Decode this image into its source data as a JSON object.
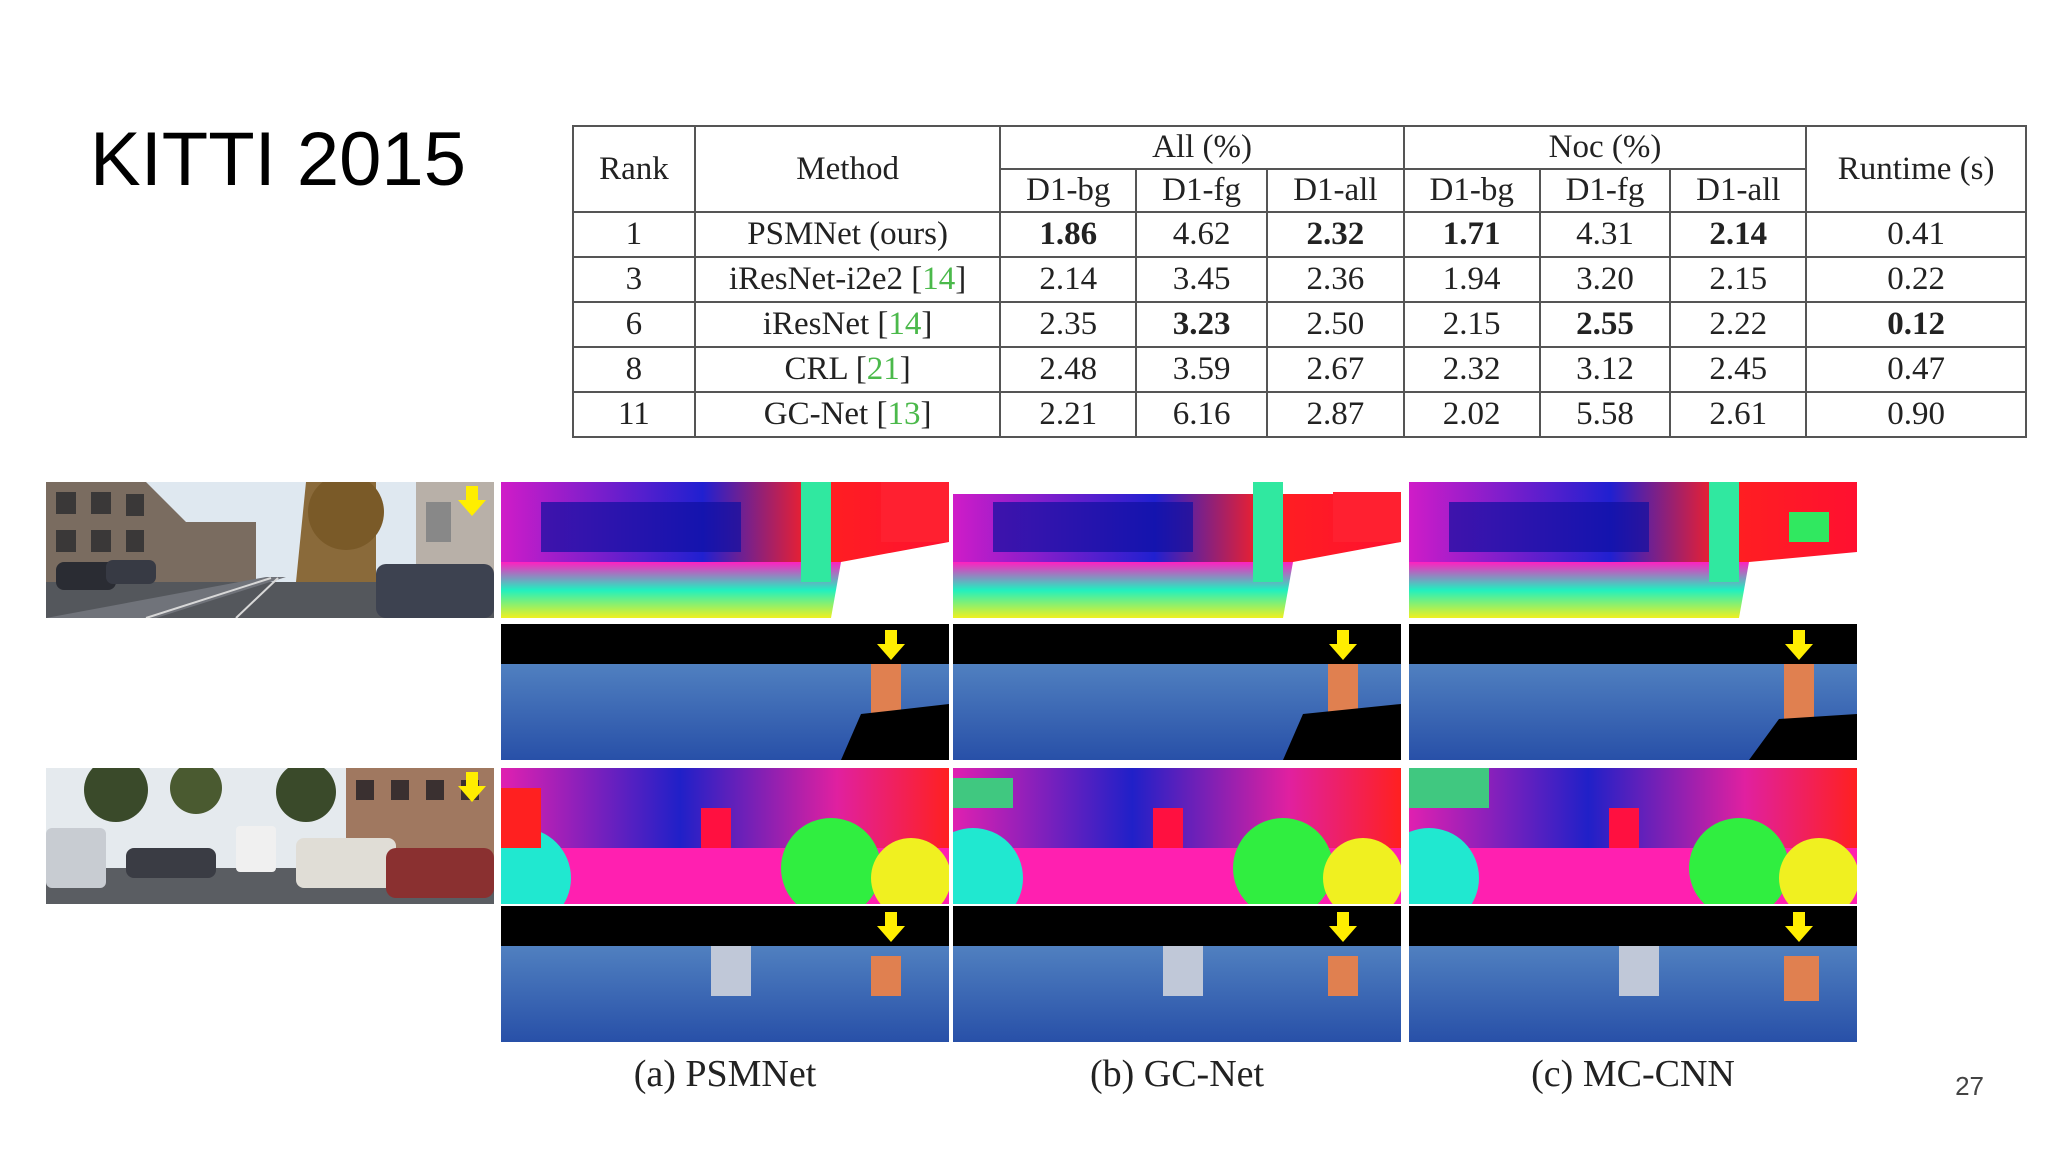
{
  "slide": {
    "title": "KITTI 2015",
    "page_number": "27"
  },
  "table": {
    "headers": {
      "rank": "Rank",
      "method": "Method",
      "all": "All (%)",
      "noc": "Noc (%)",
      "runtime": "Runtime (s)",
      "sub": [
        "D1-bg",
        "D1-fg",
        "D1-all",
        "D1-bg",
        "D1-fg",
        "D1-all"
      ]
    },
    "rows": [
      {
        "rank": "1",
        "method": "PSMNet (ours)",
        "ref": "",
        "all_bg": "1.86",
        "all_fg": "4.62",
        "all_all": "2.32",
        "noc_bg": "1.71",
        "noc_fg": "4.31",
        "noc_all": "2.14",
        "runtime": "0.41"
      },
      {
        "rank": "3",
        "method": "iResNet-i2e2 [",
        "ref": "14",
        "all_bg": "2.14",
        "all_fg": "3.45",
        "all_all": "2.36",
        "noc_bg": "1.94",
        "noc_fg": "3.20",
        "noc_all": "2.15",
        "runtime": "0.22"
      },
      {
        "rank": "6",
        "method": "iResNet [",
        "ref": "14",
        "all_bg": "2.35",
        "all_fg": "3.23",
        "all_all": "2.50",
        "noc_bg": "2.15",
        "noc_fg": "2.55",
        "noc_all": "2.22",
        "runtime": "0.12"
      },
      {
        "rank": "8",
        "method": "CRL [",
        "ref": "21",
        "all_bg": "2.48",
        "all_fg": "3.59",
        "all_all": "2.67",
        "noc_bg": "2.32",
        "noc_fg": "3.12",
        "noc_all": "2.45",
        "runtime": "0.47"
      },
      {
        "rank": "11",
        "method": "GC-Net [",
        "ref": "13",
        "all_bg": "2.21",
        "all_fg": "6.16",
        "all_all": "2.87",
        "noc_bg": "2.02",
        "noc_fg": "5.58",
        "noc_all": "2.61",
        "runtime": "0.90"
      }
    ],
    "ref_close": "]"
  },
  "figure": {
    "captions": [
      "(a) PSMNet",
      "(b) GC-Net",
      "(c) MC-CNN"
    ]
  },
  "colors": {
    "arrow": "#ffee00",
    "ref_link": "#4bb94b"
  }
}
